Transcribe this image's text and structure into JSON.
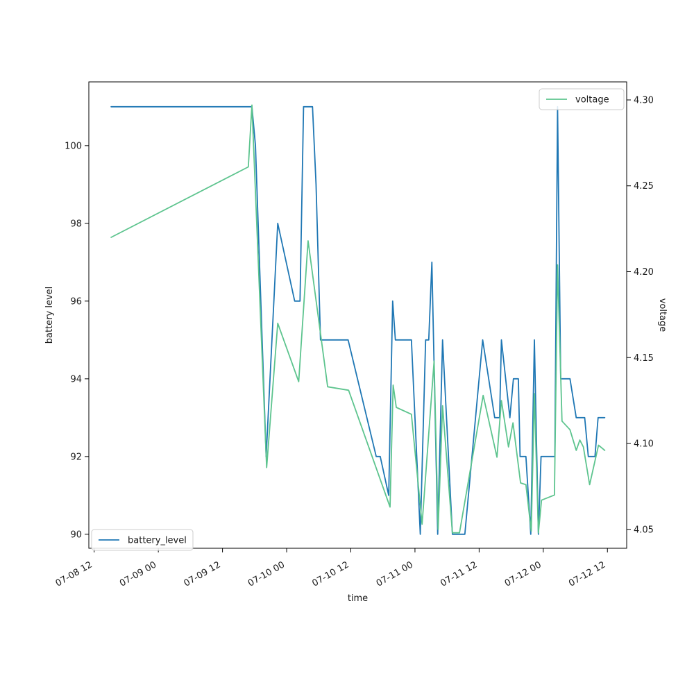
{
  "figure": {
    "xlabel": "time",
    "ylabel_left": "battery level",
    "ylabel_right": "voltage",
    "background": "#ffffff",
    "frame_color": "#000000",
    "tick_label_color": "#262626"
  },
  "legends": [
    {
      "label": "battery_level",
      "position": "lower left",
      "line_color": "#1f77b4"
    },
    {
      "label": "voltage",
      "position": "upper right",
      "line_color": "#5dc48e"
    }
  ],
  "chart_data": {
    "type": "line",
    "title": "",
    "xlabel": "time",
    "grid": false,
    "x_axis": {
      "tick_labels": [
        "07-08 12",
        "07-09 00",
        "07-09 12",
        "07-10 00",
        "07-10 12",
        "07-11 00",
        "07-11 12",
        "07-12 00",
        "07-12 12"
      ],
      "tick_hours": [
        0,
        12,
        24,
        36,
        48,
        60,
        72,
        84,
        96
      ],
      "domain_hours": [
        -1.0,
        99.6
      ],
      "label_rotation_deg": -30
    },
    "y_left": {
      "label": "battery level",
      "ticks": [
        90,
        92,
        94,
        96,
        98,
        100
      ],
      "domain": [
        89.64,
        101.64
      ]
    },
    "y_right": {
      "label": "voltage",
      "ticks": [
        4.05,
        4.1,
        4.15,
        4.2,
        4.25,
        4.3
      ],
      "tick_decimals": 2,
      "domain": [
        4.039,
        4.3105
      ]
    },
    "series": [
      {
        "name": "battery_level",
        "axis": "left",
        "color": "#1f77b4",
        "points": [
          [
            "07-08 15:10",
            101
          ],
          [
            "07-09 17:30",
            101
          ],
          [
            "07-09 18:10",
            100
          ],
          [
            "07-09 20:10",
            92
          ],
          [
            "07-09 22:20",
            98
          ],
          [
            "07-10 01:30",
            96
          ],
          [
            "07-10 02:30",
            96
          ],
          [
            "07-10 03:10",
            101
          ],
          [
            "07-10 04:50",
            101
          ],
          [
            "07-10 05:30",
            99
          ],
          [
            "07-10 06:20",
            95
          ],
          [
            "07-10 11:30",
            95
          ],
          [
            "07-10 16:45",
            92
          ],
          [
            "07-10 17:30",
            92
          ],
          [
            "07-10 19:05",
            91
          ],
          [
            "07-10 19:50",
            96
          ],
          [
            "07-10 20:20",
            95
          ],
          [
            "07-10 23:20",
            95
          ],
          [
            "07-11 01:00",
            90
          ],
          [
            "07-11 02:00",
            95
          ],
          [
            "07-11 02:35",
            95
          ],
          [
            "07-11 03:10",
            97
          ],
          [
            "07-11 04:15",
            90
          ],
          [
            "07-11 05:10",
            95
          ],
          [
            "07-11 07:00",
            90
          ],
          [
            "07-11 09:20",
            90
          ],
          [
            "07-11 12:40",
            95
          ],
          [
            "07-11 14:55",
            93
          ],
          [
            "07-11 15:50",
            93
          ],
          [
            "07-11 16:10",
            95
          ],
          [
            "07-11 17:45",
            93
          ],
          [
            "07-11 18:25",
            94
          ],
          [
            "07-11 19:20",
            94
          ],
          [
            "07-11 19:40",
            92
          ],
          [
            "07-11 20:45",
            92
          ],
          [
            "07-11 21:40",
            90
          ],
          [
            "07-11 22:20",
            95
          ],
          [
            "07-11 23:05",
            90
          ],
          [
            "07-11 23:35",
            92
          ],
          [
            "07-12 02:10",
            92
          ],
          [
            "07-12 02:40",
            101
          ],
          [
            "07-12 03:15",
            94
          ],
          [
            "07-12 05:00",
            94
          ],
          [
            "07-12 06:10",
            93
          ],
          [
            "07-12 07:45",
            93
          ],
          [
            "07-12 08:25",
            92
          ],
          [
            "07-12 09:40",
            92
          ],
          [
            "07-12 10:15",
            93
          ],
          [
            "07-12 11:30",
            93
          ]
        ]
      },
      {
        "name": "voltage",
        "axis": "right",
        "color": "#5dc48e",
        "points": [
          [
            "07-08 15:10",
            4.22
          ],
          [
            "07-09 16:50",
            4.261
          ],
          [
            "07-09 17:30",
            4.297
          ],
          [
            "07-09 20:15",
            4.086
          ],
          [
            "07-09 22:20",
            4.17
          ],
          [
            "07-10 02:15",
            4.136
          ],
          [
            "07-10 04:00",
            4.218
          ],
          [
            "07-10 07:40",
            4.133
          ],
          [
            "07-10 11:35",
            4.131
          ],
          [
            "07-10 19:20",
            4.063
          ],
          [
            "07-10 19:55",
            4.134
          ],
          [
            "07-10 20:30",
            4.121
          ],
          [
            "07-10 23:20",
            4.117
          ],
          [
            "07-11 01:20",
            4.053
          ],
          [
            "07-11 03:35",
            4.148
          ],
          [
            "07-11 04:20",
            4.05
          ],
          [
            "07-11 05:10",
            4.122
          ],
          [
            "07-11 07:00",
            4.048
          ],
          [
            "07-11 08:20",
            4.048
          ],
          [
            "07-11 12:45",
            4.128
          ],
          [
            "07-11 15:20",
            4.092
          ],
          [
            "07-11 16:10",
            4.125
          ],
          [
            "07-11 17:30",
            4.098
          ],
          [
            "07-11 18:20",
            4.112
          ],
          [
            "07-11 19:45",
            4.077
          ],
          [
            "07-11 20:45",
            4.076
          ],
          [
            "07-11 21:45",
            4.049
          ],
          [
            "07-11 22:20",
            4.129
          ],
          [
            "07-11 23:05",
            4.048
          ],
          [
            "07-11 23:40",
            4.067
          ],
          [
            "07-12 02:05",
            4.07
          ],
          [
            "07-12 02:40",
            4.204
          ],
          [
            "07-12 03:30",
            4.113
          ],
          [
            "07-12 05:00",
            4.108
          ],
          [
            "07-12 06:10",
            4.096
          ],
          [
            "07-12 06:50",
            4.102
          ],
          [
            "07-12 07:30",
            4.098
          ],
          [
            "07-12 08:40",
            4.076
          ],
          [
            "07-12 10:20",
            4.099
          ],
          [
            "07-12 11:30",
            4.096
          ]
        ]
      }
    ],
    "legend_position": [
      "lower left",
      "upper right"
    ]
  }
}
